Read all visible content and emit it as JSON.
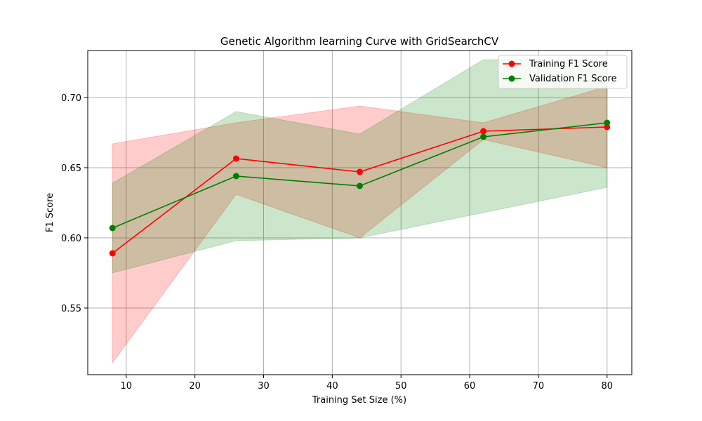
{
  "chart_data": {
    "type": "line",
    "title": "Genetic Algorithm learning Curve with GridSearchCV",
    "xlabel": "Training Set Size (%)",
    "ylabel": "F1 Score",
    "xlim": [
      4.4,
      83.6
    ],
    "ylim": [
      0.5025,
      0.7335
    ],
    "xticks": [
      10,
      20,
      30,
      40,
      50,
      60,
      70,
      80
    ],
    "xtick_labels": [
      "10",
      "20",
      "30",
      "40",
      "50",
      "60",
      "70",
      "80"
    ],
    "yticks": [
      0.55,
      0.6,
      0.65,
      0.7
    ],
    "ytick_labels": [
      "0.55",
      "0.60",
      "0.65",
      "0.70"
    ],
    "grid": true,
    "legend_position": "top-right",
    "x": [
      8,
      26,
      44,
      62,
      80
    ],
    "series": [
      {
        "name": "Training F1 Score",
        "color": "#ff0000",
        "values": [
          0.589,
          0.6565,
          0.647,
          0.676,
          0.679
        ],
        "band_lower": [
          0.511,
          0.631,
          0.6,
          0.67,
          0.65
        ],
        "band_upper": [
          0.667,
          0.682,
          0.694,
          0.682,
          0.708
        ]
      },
      {
        "name": "Validation F1 Score",
        "color": "#008000",
        "values": [
          0.607,
          0.644,
          0.637,
          0.672,
          0.682
        ],
        "band_lower": [
          0.575,
          0.598,
          0.6,
          0.618,
          0.636
        ],
        "band_upper": [
          0.639,
          0.69,
          0.674,
          0.727,
          0.727
        ]
      }
    ]
  }
}
